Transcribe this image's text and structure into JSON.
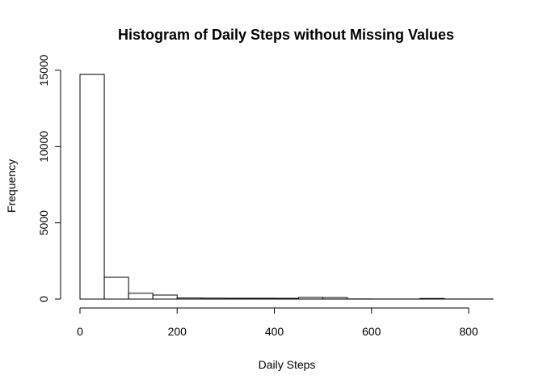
{
  "chart_data": {
    "type": "bar",
    "title": "Histogram of Daily Steps without Missing Values",
    "xlabel": "Daily Steps",
    "ylabel": "Frequency",
    "bin_width": 50,
    "bins": [
      {
        "start": 0,
        "end": 50,
        "count": 14730
      },
      {
        "start": 50,
        "end": 100,
        "count": 1430
      },
      {
        "start": 100,
        "end": 150,
        "count": 380
      },
      {
        "start": 150,
        "end": 200,
        "count": 265
      },
      {
        "start": 200,
        "end": 250,
        "count": 70
      },
      {
        "start": 250,
        "end": 300,
        "count": 60
      },
      {
        "start": 300,
        "end": 350,
        "count": 55
      },
      {
        "start": 350,
        "end": 400,
        "count": 55
      },
      {
        "start": 400,
        "end": 450,
        "count": 50
      },
      {
        "start": 450,
        "end": 500,
        "count": 110
      },
      {
        "start": 500,
        "end": 550,
        "count": 100
      },
      {
        "start": 550,
        "end": 600,
        "count": 10
      },
      {
        "start": 600,
        "end": 650,
        "count": 5
      },
      {
        "start": 650,
        "end": 700,
        "count": 5
      },
      {
        "start": 700,
        "end": 750,
        "count": 40
      },
      {
        "start": 750,
        "end": 800,
        "count": 5
      },
      {
        "start": 800,
        "end": 850,
        "count": 5
      }
    ],
    "xlim": [
      0,
      850
    ],
    "ylim": [
      0,
      15000
    ],
    "x_ticks": [
      0,
      200,
      400,
      600,
      800
    ],
    "x_tick_labels": [
      "0",
      "200",
      "400",
      "600",
      "800"
    ],
    "y_ticks": [
      0,
      5000,
      10000,
      15000
    ],
    "y_tick_labels": [
      "0",
      "5000",
      "10000",
      "15000"
    ],
    "grid": false,
    "legend": "none",
    "bar_fill": "#ffffff",
    "bar_stroke": "#000000"
  }
}
